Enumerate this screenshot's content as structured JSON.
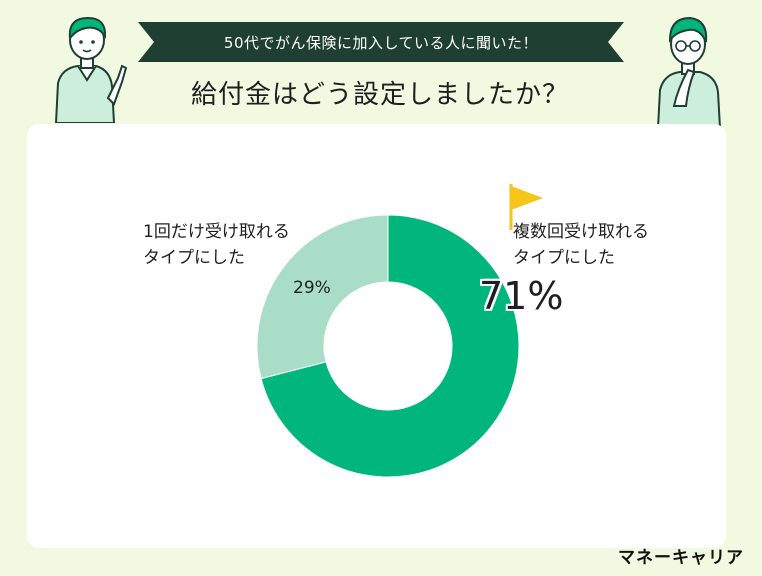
{
  "header": {
    "banner": "50代でがん保険に加入している人に聞いた！",
    "title": "給付金はどう設定しましたか？"
  },
  "colors": {
    "background": "#f1f9e1",
    "banner": "#1f3f33",
    "series_main": "#00b67a",
    "series_light": "#a9ddc8",
    "flag": "#f5c518"
  },
  "icons": [
    "woman-pointing-icon",
    "man-thinking-icon",
    "flag-icon"
  ],
  "chart_data": {
    "type": "pie",
    "style": "donut",
    "title": "給付金はどう設定しましたか？",
    "slices": [
      {
        "label": "複数回受け取れるタイプにした",
        "label_line1": "複数回受け取れる",
        "label_line2": "タイプにした",
        "value": 71,
        "display": "71%",
        "color": "#00b67a"
      },
      {
        "label": "1回だけ受け取れるタイプにした",
        "label_line1": "1回だけ受け取れる",
        "label_line2": "タイプにした",
        "value": 29,
        "display": "29%",
        "color": "#a9ddc8"
      }
    ]
  },
  "footer": {
    "logo": "マネーキャリア"
  }
}
